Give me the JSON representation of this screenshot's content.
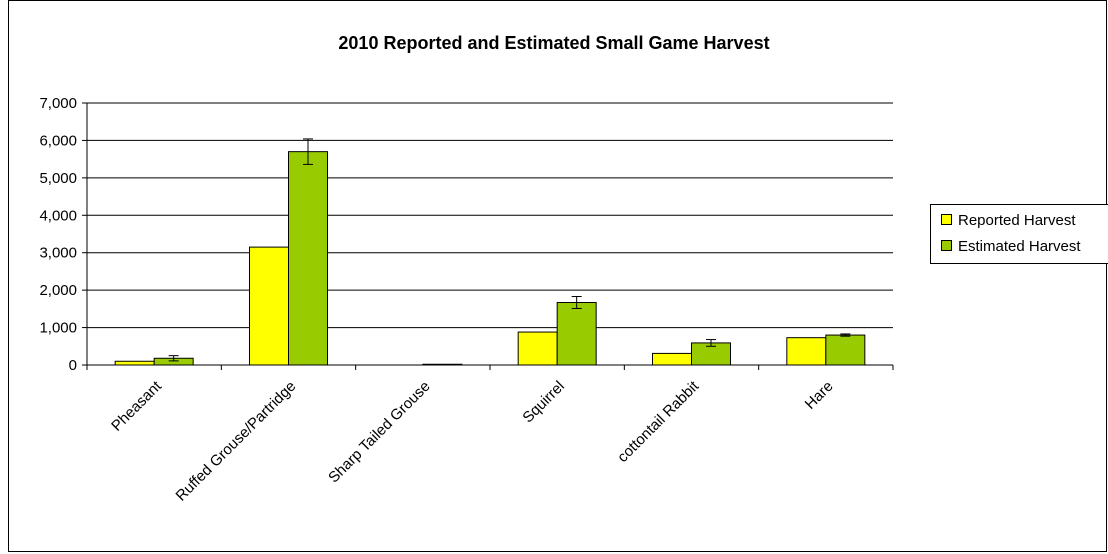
{
  "chart_data": {
    "type": "bar",
    "title": "2010 Reported and Estimated Small Game Harvest",
    "categories": [
      "Pheasant",
      "Ruffed Grouse/Partridge",
      "Sharp Tailed Grouse",
      "Squirrel",
      "cottontail Rabbit",
      "Hare"
    ],
    "series": [
      {
        "name": "Reported Harvest",
        "color": "#ffff00",
        "values": [
          100,
          3150,
          0,
          880,
          310,
          730
        ]
      },
      {
        "name": "Estimated Harvest",
        "color": "#99cc00",
        "values": [
          180,
          5700,
          20,
          1670,
          590,
          800
        ],
        "error": [
          70,
          340,
          0,
          160,
          90,
          30
        ]
      }
    ],
    "ylim": [
      0,
      7000
    ],
    "yticks": [
      "0",
      "1,000",
      "2,000",
      "3,000",
      "4,000",
      "5,000",
      "6,000",
      "7,000"
    ],
    "grid": true,
    "legend_position": "right"
  }
}
